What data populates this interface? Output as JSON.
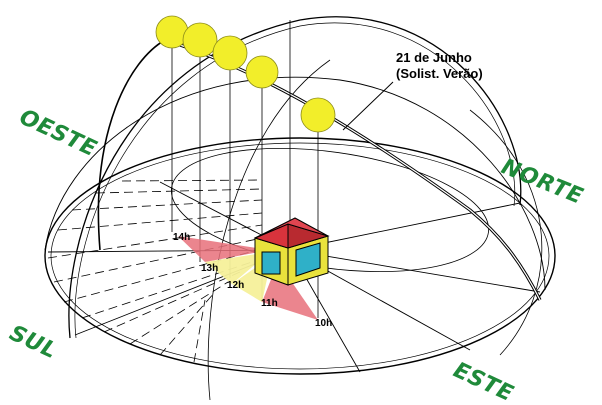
{
  "annotation": {
    "line1": "21 de Junho",
    "line2": "(Solist. Verão)"
  },
  "directions": {
    "west": "OESTE",
    "north": "NORTE",
    "south": "SUL",
    "east": "ESTE"
  },
  "hours": {
    "h14": "14h",
    "h13": "13h",
    "h12": "12h",
    "h11": "11h",
    "h10": "10h"
  },
  "colors": {
    "direction_text": "#1f8a3a",
    "sun": "#f2ee2a",
    "shadow_red": "#e8707a",
    "shadow_yellow": "#f5f09a",
    "house_roof": "#d8333c",
    "house_wall": "#e9e23c",
    "house_window": "#2fb0c8"
  },
  "icons": {
    "sun": "sun-disc-icon",
    "house": "house-model-icon"
  }
}
